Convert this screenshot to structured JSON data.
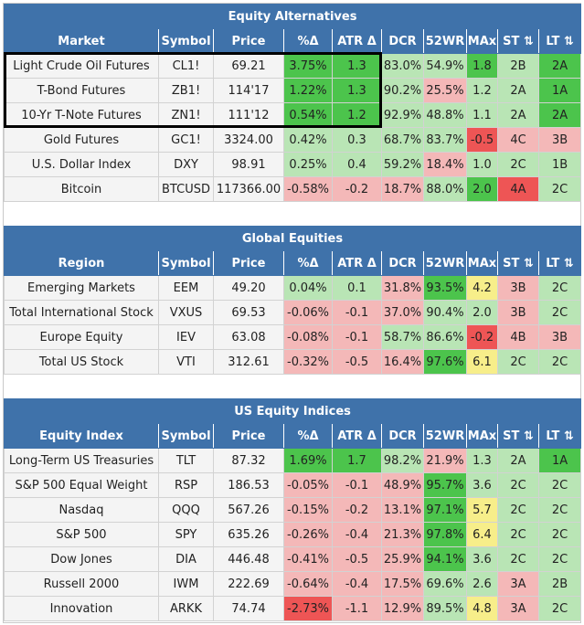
{
  "columns": [
    "Market",
    "Symbol",
    "Price",
    "%Δ",
    "ATR Δ",
    "DCR",
    "52WR",
    "MAx",
    "ST ⇅",
    "LT ⇅"
  ],
  "colors": {
    "header": "#3f72aa",
    "strong_green": "#4cc44c",
    "light_green": "#b9e5b5",
    "light_red": "#f4b8b8",
    "strong_red": "#ee5555",
    "yellow": "#f7ee8a"
  },
  "sections": [
    {
      "title": "Equity Alternatives",
      "first_col": "Market",
      "rows": [
        {
          "name": "Light Crude Oil Futures",
          "symbol": "CL1!",
          "price": "69.21",
          "pct": "3.75%",
          "atr": "1.3",
          "dcr": "83.0%",
          "wr": "54.9%",
          "max": "1.8",
          "st": "2B",
          "lt": "2A",
          "c": [
            "g2",
            "g2",
            "g1",
            "g1",
            "g2",
            "g1",
            "g2"
          ]
        },
        {
          "name": "T-Bond Futures",
          "symbol": "ZB1!",
          "price": "114'17",
          "pct": "1.22%",
          "atr": "1.3",
          "dcr": "90.2%",
          "wr": "25.5%",
          "max": "1.2",
          "st": "2A",
          "lt": "1A",
          "c": [
            "g2",
            "g2",
            "g1",
            "r1",
            "g1",
            "g1",
            "g2"
          ]
        },
        {
          "name": "10-Yr T-Note Futures",
          "symbol": "ZN1!",
          "price": "111'12",
          "pct": "0.54%",
          "atr": "1.2",
          "dcr": "92.9%",
          "wr": "48.8%",
          "max": "1.1",
          "st": "2A",
          "lt": "2A",
          "c": [
            "g2",
            "g2",
            "g1",
            "g1",
            "g1",
            "g1",
            "g2"
          ]
        },
        {
          "name": "Gold Futures",
          "symbol": "GC1!",
          "price": "3324.00",
          "pct": "0.42%",
          "atr": "0.3",
          "dcr": "68.7%",
          "wr": "83.7%",
          "max": "-0.5",
          "st": "4C",
          "lt": "3B",
          "c": [
            "g1",
            "g1",
            "g1",
            "g1",
            "r2",
            "r1",
            "r1"
          ]
        },
        {
          "name": "U.S. Dollar Index",
          "symbol": "DXY",
          "price": "98.91",
          "pct": "0.25%",
          "atr": "0.4",
          "dcr": "59.2%",
          "wr": "18.4%",
          "max": "1.0",
          "st": "2C",
          "lt": "1B",
          "c": [
            "g1",
            "g1",
            "g1",
            "r1",
            "g1",
            "g1",
            "g1"
          ]
        },
        {
          "name": "Bitcoin",
          "symbol": "BTCUSD",
          "price": "117366.00",
          "pct": "-0.58%",
          "atr": "-0.2",
          "dcr": "18.7%",
          "wr": "88.0%",
          "max": "2.0",
          "st": "4A",
          "lt": "2C",
          "c": [
            "r1",
            "r1",
            "r1",
            "g1",
            "g2",
            "r2",
            "g1"
          ]
        }
      ]
    },
    {
      "title": "Global Equities",
      "first_col": "Region",
      "rows": [
        {
          "name": "Emerging Markets",
          "symbol": "EEM",
          "price": "49.20",
          "pct": "0.04%",
          "atr": "0.1",
          "dcr": "31.8%",
          "wr": "93.5%",
          "max": "4.2",
          "st": "3B",
          "lt": "2C",
          "c": [
            "g1",
            "g1",
            "r1",
            "g2",
            "y1",
            "r1",
            "g1"
          ]
        },
        {
          "name": "Total International Stock",
          "symbol": "VXUS",
          "price": "69.53",
          "pct": "-0.06%",
          "atr": "-0.1",
          "dcr": "37.0%",
          "wr": "90.4%",
          "max": "2.0",
          "st": "3B",
          "lt": "2C",
          "c": [
            "r1",
            "r1",
            "r1",
            "g1",
            "g1",
            "r1",
            "g1"
          ]
        },
        {
          "name": "Europe Equity",
          "symbol": "IEV",
          "price": "63.08",
          "pct": "-0.08%",
          "atr": "-0.1",
          "dcr": "58.7%",
          "wr": "86.6%",
          "max": "-0.2",
          "st": "4B",
          "lt": "3B",
          "c": [
            "r1",
            "r1",
            "g1",
            "g1",
            "r2",
            "r1",
            "r1"
          ]
        },
        {
          "name": "Total US Stock",
          "symbol": "VTI",
          "price": "312.61",
          "pct": "-0.32%",
          "atr": "-0.5",
          "dcr": "16.4%",
          "wr": "97.6%",
          "max": "6.1",
          "st": "2C",
          "lt": "2C",
          "c": [
            "r1",
            "r1",
            "r1",
            "g2",
            "y1",
            "g1",
            "g1"
          ]
        }
      ]
    },
    {
      "title": "US Equity Indices",
      "first_col": "Equity Index",
      "rows": [
        {
          "name": "Long-Term US Treasuries",
          "symbol": "TLT",
          "price": "87.32",
          "pct": "1.69%",
          "atr": "1.7",
          "dcr": "98.2%",
          "wr": "21.9%",
          "max": "1.3",
          "st": "2A",
          "lt": "1A",
          "c": [
            "g2",
            "g2",
            "g1",
            "r1",
            "g1",
            "g1",
            "g2"
          ]
        },
        {
          "name": "S&P 500 Equal Weight",
          "symbol": "RSP",
          "price": "186.53",
          "pct": "-0.05%",
          "atr": "-0.1",
          "dcr": "48.9%",
          "wr": "95.7%",
          "max": "3.6",
          "st": "2C",
          "lt": "2C",
          "c": [
            "r1",
            "r1",
            "r1",
            "g2",
            "g1",
            "g1",
            "g1"
          ]
        },
        {
          "name": "Nasdaq",
          "symbol": "QQQ",
          "price": "567.26",
          "pct": "-0.15%",
          "atr": "-0.2",
          "dcr": "13.1%",
          "wr": "97.1%",
          "max": "5.7",
          "st": "2C",
          "lt": "2C",
          "c": [
            "r1",
            "r1",
            "r1",
            "g2",
            "y1",
            "g1",
            "g1"
          ]
        },
        {
          "name": "S&P 500",
          "symbol": "SPY",
          "price": "635.26",
          "pct": "-0.26%",
          "atr": "-0.4",
          "dcr": "21.3%",
          "wr": "97.8%",
          "max": "6.4",
          "st": "2C",
          "lt": "2C",
          "c": [
            "r1",
            "r1",
            "r1",
            "g2",
            "y1",
            "g1",
            "g1"
          ]
        },
        {
          "name": "Dow Jones",
          "symbol": "DIA",
          "price": "446.48",
          "pct": "-0.41%",
          "atr": "-0.5",
          "dcr": "25.9%",
          "wr": "94.1%",
          "max": "3.6",
          "st": "2C",
          "lt": "2C",
          "c": [
            "r1",
            "r1",
            "r1",
            "g2",
            "g1",
            "g1",
            "g1"
          ]
        },
        {
          "name": "Russell 2000",
          "symbol": "IWM",
          "price": "222.69",
          "pct": "-0.64%",
          "atr": "-0.4",
          "dcr": "17.5%",
          "wr": "69.6%",
          "max": "2.6",
          "st": "3A",
          "lt": "2B",
          "c": [
            "r1",
            "r1",
            "r1",
            "g1",
            "g1",
            "r1",
            "g1"
          ]
        },
        {
          "name": "Innovation",
          "symbol": "ARKK",
          "price": "74.74",
          "pct": "-2.73%",
          "atr": "-1.1",
          "dcr": "12.9%",
          "wr": "89.5%",
          "max": "4.8",
          "st": "3A",
          "lt": "2C",
          "c": [
            "r2",
            "r1",
            "r1",
            "g1",
            "y1",
            "r1",
            "g1"
          ]
        }
      ]
    }
  ]
}
